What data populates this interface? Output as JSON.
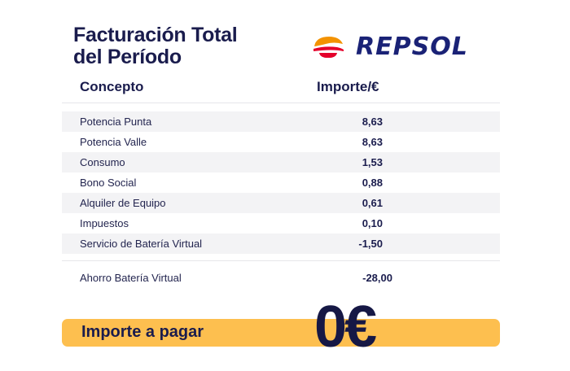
{
  "header": {
    "title_line1": "Facturación Total",
    "title_line2": "del Período",
    "brand": "REPSOL"
  },
  "table": {
    "columns": [
      "Concepto",
      "Importe/€"
    ],
    "rows": [
      {
        "label": "Potencia Punta",
        "value": "8,63"
      },
      {
        "label": "Potencia Valle",
        "value": "8,63"
      },
      {
        "label": "Consumo",
        "value": "1,53"
      },
      {
        "label": "Bono Social",
        "value": "0,88"
      },
      {
        "label": "Alquiler de Equipo",
        "value": "0,61"
      },
      {
        "label": "Impuestos",
        "value": "0,10"
      },
      {
        "label": "Servicio de Batería Virtual",
        "value": "-1,50"
      }
    ],
    "savings": {
      "label": "Ahorro Batería Virtual",
      "value": "-28,00"
    }
  },
  "total": {
    "label": "Importe a pagar",
    "value": "0€"
  },
  "colors": {
    "navy": "#1a1c4d",
    "brand_blue": "#1a2276",
    "accent_yellow": "#fdbf4f",
    "logo_orange": "#f39200",
    "logo_red": "#e4002b",
    "row_shade": "#f3f3f5"
  },
  "icons": {
    "logo": "repsol-flame-logo"
  }
}
